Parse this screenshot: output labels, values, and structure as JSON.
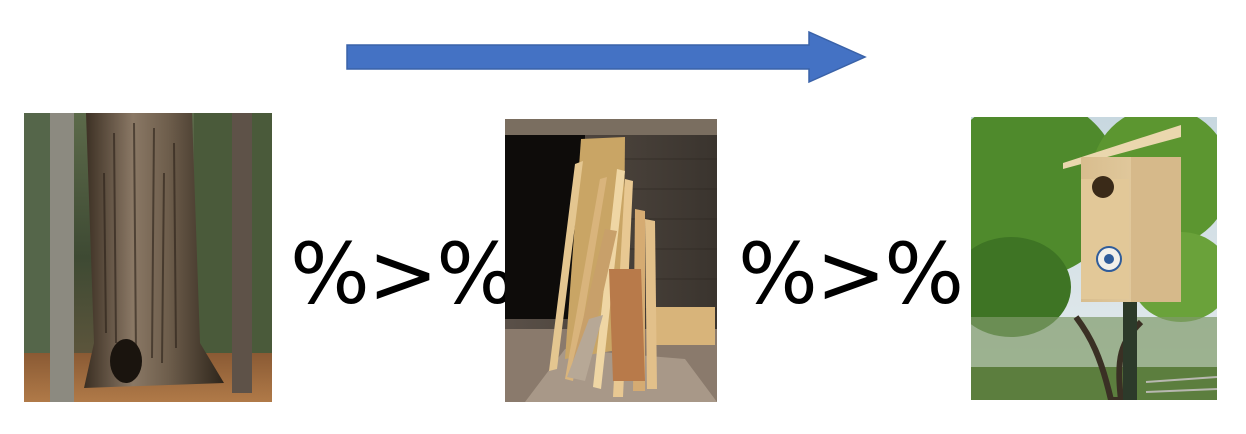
{
  "diagram": {
    "operators": [
      "%>%",
      "%>%"
    ],
    "arrow": {
      "color": "#4472C4",
      "direction": "right"
    },
    "images": [
      {
        "subject": "tree-trunk-photo"
      },
      {
        "subject": "lumber-pile-photo"
      },
      {
        "subject": "birdhouse-photo"
      }
    ]
  }
}
